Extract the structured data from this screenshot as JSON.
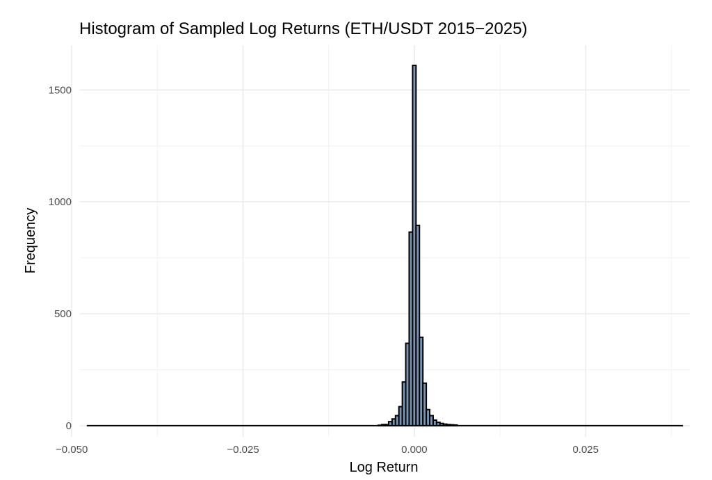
{
  "chart_data": {
    "type": "bar",
    "title": "Histogram of Sampled Log Returns (ETH/USDT 2015−2025)",
    "xlabel": "Log Return",
    "ylabel": "Frequency",
    "xlim": [
      -0.0488,
      0.0402
    ],
    "ylim": [
      -50,
      1700
    ],
    "x_ticks": [
      -0.05,
      -0.025,
      0.0,
      0.025
    ],
    "x_tick_labels": [
      "−0.050",
      "−0.025",
      "0.000",
      "0.025"
    ],
    "y_ticks": [
      0,
      500,
      1000,
      1500
    ],
    "y_tick_labels": [
      "0",
      "500",
      "1000",
      "1500"
    ],
    "grid": true,
    "bin_width": 0.0005,
    "bins": [
      {
        "x": -0.005,
        "count": 2
      },
      {
        "x": -0.0045,
        "count": 5
      },
      {
        "x": -0.004,
        "count": 5
      },
      {
        "x": -0.0035,
        "count": 18
      },
      {
        "x": -0.003,
        "count": 30
      },
      {
        "x": -0.0025,
        "count": 45
      },
      {
        "x": -0.002,
        "count": 85
      },
      {
        "x": -0.0015,
        "count": 195
      },
      {
        "x": -0.001,
        "count": 368
      },
      {
        "x": -0.0005,
        "count": 865
      },
      {
        "x": 0.0,
        "count": 1610
      },
      {
        "x": 0.0005,
        "count": 895
      },
      {
        "x": 0.001,
        "count": 395
      },
      {
        "x": 0.0015,
        "count": 190
      },
      {
        "x": 0.002,
        "count": 72
      },
      {
        "x": 0.0025,
        "count": 45
      },
      {
        "x": 0.003,
        "count": 25
      },
      {
        "x": 0.0035,
        "count": 15
      },
      {
        "x": 0.004,
        "count": 10
      },
      {
        "x": 0.0045,
        "count": 7
      },
      {
        "x": 0.005,
        "count": 5
      },
      {
        "x": 0.0055,
        "count": 4
      },
      {
        "x": 0.006,
        "count": 3
      }
    ],
    "baseline": {
      "x_start": -0.0478,
      "x_end": 0.0392,
      "count": 0
    }
  },
  "colors": {
    "bar_fill": "#7795b5",
    "bar_stroke": "#000000",
    "grid": "#ebebeb",
    "background": "#ffffff"
  }
}
